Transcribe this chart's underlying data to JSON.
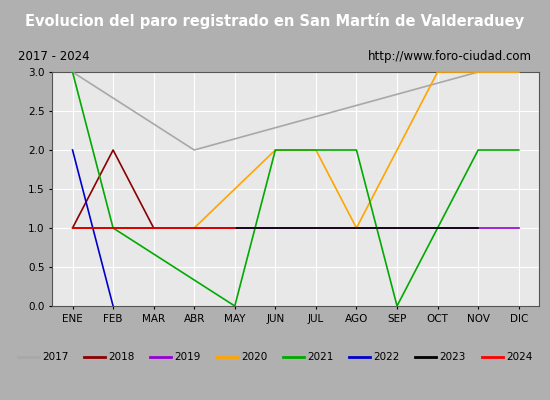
{
  "title": "Evolucion del paro registrado en San Martín de Valderaduey",
  "subtitle_left": "2017 - 2024",
  "subtitle_right": "http://www.foro-ciudad.com",
  "title_bg": "#3a7abf",
  "subtitle_bg": "#c8c8c8",
  "plot_bg": "#e8e8e8",
  "months": [
    "ENE",
    "FEB",
    "MAR",
    "ABR",
    "MAY",
    "JUN",
    "JUL",
    "AGO",
    "SEP",
    "OCT",
    "NOV",
    "DIC"
  ],
  "ylim": [
    0.0,
    3.0
  ],
  "yticks": [
    0.0,
    0.5,
    1.0,
    1.5,
    2.0,
    2.5,
    3.0
  ],
  "series": [
    {
      "year": "2017",
      "color": "#a8a8a8",
      "x": [
        0,
        3,
        10,
        11
      ],
      "y": [
        3,
        2,
        3,
        3
      ]
    },
    {
      "year": "2018",
      "color": "#8b0000",
      "x": [
        0,
        1,
        2
      ],
      "y": [
        1,
        2,
        1
      ]
    },
    {
      "year": "2019",
      "color": "#9400d3",
      "x": [
        0,
        5,
        8,
        11
      ],
      "y": [
        1,
        1,
        1,
        1
      ]
    },
    {
      "year": "2020",
      "color": "#ffa500",
      "x": [
        0,
        3,
        5,
        6,
        7,
        9,
        10,
        11
      ],
      "y": [
        1,
        1,
        2,
        2,
        1,
        3,
        3,
        3
      ]
    },
    {
      "year": "2021",
      "color": "#00aa00",
      "x": [
        0,
        1,
        4,
        5,
        6,
        7,
        8,
        10,
        11
      ],
      "y": [
        3,
        1,
        0,
        2,
        2,
        2,
        0,
        2,
        2
      ]
    },
    {
      "year": "2022",
      "color": "#0000cd",
      "x": [
        0,
        1
      ],
      "y": [
        2,
        0
      ]
    },
    {
      "year": "2023",
      "color": "#000000",
      "x": [
        0,
        9,
        10
      ],
      "y": [
        1,
        1,
        1
      ]
    },
    {
      "year": "2024",
      "color": "#ff0000",
      "x": [
        0,
        4
      ],
      "y": [
        1,
        1
      ]
    }
  ],
  "legend_bg": "#d0d0d0",
  "outer_bg": "#b0b0b0"
}
